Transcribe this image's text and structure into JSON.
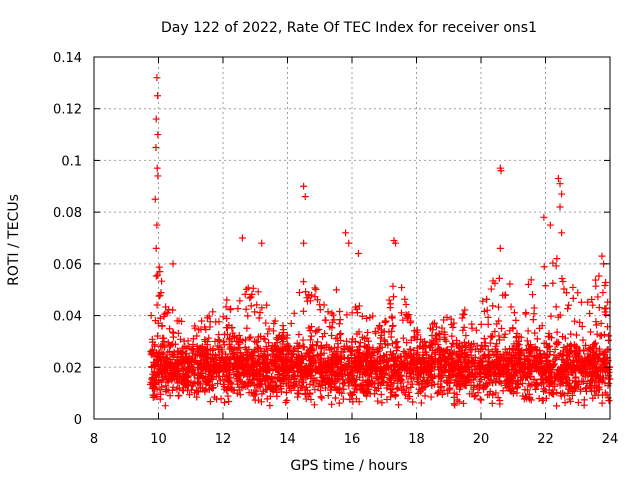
{
  "chart_data": {
    "type": "scatter",
    "title": "Day 122 of 2022, Rate Of TEC Index for receiver ons1",
    "xlabel": "GPS time / hours",
    "ylabel": "ROTI / TECUs",
    "xlim": [
      8,
      24
    ],
    "ylim": [
      0,
      0.14
    ],
    "xticks": [
      "8",
      "10",
      "12",
      "14",
      "16",
      "18",
      "20",
      "22",
      "24"
    ],
    "yticks": [
      "0",
      "0.02",
      "0.04",
      "0.06",
      "0.08",
      "0.1",
      "0.12",
      "0.14"
    ],
    "grid": true,
    "marker": "+",
    "series": [
      {
        "name": "ROTI",
        "color": "#ff0000",
        "data_start_hour": 9.75,
        "data_end_hour": 24.0,
        "baseline": 0.019,
        "envelope": [
          {
            "hour": 9.75,
            "upper": 0.045
          },
          {
            "hour": 10.0,
            "upper": 0.06
          },
          {
            "hour": 10.5,
            "upper": 0.04
          },
          {
            "hour": 11.0,
            "upper": 0.035
          },
          {
            "hour": 12.0,
            "upper": 0.045
          },
          {
            "hour": 13.0,
            "upper": 0.055
          },
          {
            "hour": 13.5,
            "upper": 0.04
          },
          {
            "hour": 14.0,
            "upper": 0.035
          },
          {
            "hour": 14.5,
            "upper": 0.055
          },
          {
            "hour": 15.0,
            "upper": 0.05
          },
          {
            "hour": 16.0,
            "upper": 0.05
          },
          {
            "hour": 17.0,
            "upper": 0.04
          },
          {
            "hour": 17.3,
            "upper": 0.06
          },
          {
            "hour": 18.0,
            "upper": 0.035
          },
          {
            "hour": 19.0,
            "upper": 0.04
          },
          {
            "hour": 20.0,
            "upper": 0.045
          },
          {
            "hour": 20.6,
            "upper": 0.06
          },
          {
            "hour": 21.0,
            "upper": 0.05
          },
          {
            "hour": 22.0,
            "upper": 0.06
          },
          {
            "hour": 22.5,
            "upper": 0.065
          },
          {
            "hour": 23.0,
            "upper": 0.05
          },
          {
            "hour": 23.8,
            "upper": 0.06
          },
          {
            "hour": 24.0,
            "upper": 0.04
          }
        ],
        "outliers": [
          {
            "hour": 9.95,
            "roti": 0.132
          },
          {
            "hour": 9.97,
            "roti": 0.125
          },
          {
            "hour": 9.93,
            "roti": 0.116
          },
          {
            "hour": 9.98,
            "roti": 0.11
          },
          {
            "hour": 9.92,
            "roti": 0.105
          },
          {
            "hour": 9.96,
            "roti": 0.097
          },
          {
            "hour": 9.98,
            "roti": 0.094
          },
          {
            "hour": 9.9,
            "roti": 0.085
          },
          {
            "hour": 9.95,
            "roti": 0.075
          },
          {
            "hour": 9.93,
            "roti": 0.066
          },
          {
            "hour": 10.45,
            "roti": 0.06
          },
          {
            "hour": 12.6,
            "roti": 0.07
          },
          {
            "hour": 13.2,
            "roti": 0.068
          },
          {
            "hour": 14.5,
            "roti": 0.09
          },
          {
            "hour": 14.55,
            "roti": 0.086
          },
          {
            "hour": 14.5,
            "roti": 0.068
          },
          {
            "hour": 15.8,
            "roti": 0.072
          },
          {
            "hour": 15.9,
            "roti": 0.068
          },
          {
            "hour": 16.2,
            "roti": 0.064
          },
          {
            "hour": 17.3,
            "roti": 0.069
          },
          {
            "hour": 17.35,
            "roti": 0.068
          },
          {
            "hour": 20.6,
            "roti": 0.097
          },
          {
            "hour": 20.62,
            "roti": 0.096
          },
          {
            "hour": 20.6,
            "roti": 0.066
          },
          {
            "hour": 22.4,
            "roti": 0.093
          },
          {
            "hour": 22.45,
            "roti": 0.091
          },
          {
            "hour": 22.5,
            "roti": 0.087
          },
          {
            "hour": 22.45,
            "roti": 0.082
          },
          {
            "hour": 21.95,
            "roti": 0.078
          },
          {
            "hour": 22.15,
            "roti": 0.075
          },
          {
            "hour": 22.5,
            "roti": 0.072
          },
          {
            "hour": 23.75,
            "roti": 0.063
          },
          {
            "hour": 23.8,
            "roti": 0.06
          }
        ]
      }
    ]
  }
}
